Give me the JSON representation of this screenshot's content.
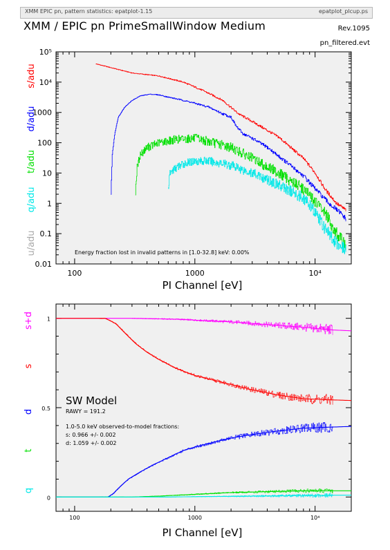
{
  "header": {
    "left_text": "XMM EPIC pn, pattern statistics: epatplot-1.15",
    "right_text": "epatplot_plcup.ps"
  },
  "title": "XMM / EPIC pn PrimeSmallWindow Medium",
  "revision": "Rev.1095",
  "filename": "pn_filtered.evt",
  "colors": {
    "s": "#ff0000",
    "d": "#0000ff",
    "t": "#00e000",
    "q": "#00e8e8",
    "u": "#a8a8a8",
    "sd": "#ff00ff",
    "model": "#000000",
    "panel_bg": "#f0f0f0"
  },
  "chart_data": [
    {
      "type": "line",
      "xscale": "log",
      "yscale": "log",
      "xlim": [
        70,
        20000
      ],
      "ylim": [
        0.01,
        100000
      ],
      "xlabel": "PI Channel [eV]",
      "x_tick_labels": [
        "100",
        "1000",
        "10⁴"
      ],
      "y_tick_labels": [
        "0.01",
        "0.1",
        "1",
        "10",
        "100",
        "1000",
        "10⁴",
        "10⁵"
      ],
      "ylabels": [
        "s/adu",
        "d/adu",
        "t/adu",
        "q/adu",
        "u/adu"
      ],
      "annotation": "Energy fraction lost in invalid patterns in [1.0-32.8] keV:  0.00%",
      "series": [
        {
          "name": "s/adu",
          "color_key": "s",
          "x": [
            150,
            200,
            300,
            500,
            800,
            1200,
            1700,
            2300,
            3000,
            5000,
            8000,
            10000,
            12000,
            15000,
            18000
          ],
          "y": [
            40000,
            30000,
            20000,
            16000,
            10000,
            5000,
            2500,
            900,
            500,
            150,
            30,
            10,
            3,
            1,
            0.6
          ]
        },
        {
          "name": "d/adu",
          "color_key": "d",
          "x": [
            200,
            205,
            215,
            230,
            260,
            300,
            350,
            420,
            500,
            600,
            800,
            1000,
            1300,
            1700,
            2000,
            2200,
            2500,
            3000,
            4000,
            6000,
            8000,
            10000,
            13000,
            16000,
            18000
          ],
          "y": [
            2,
            40,
            200,
            700,
            1500,
            2500,
            3500,
            4000,
            3800,
            3200,
            2500,
            2000,
            1500,
            900,
            700,
            350,
            200,
            140,
            70,
            20,
            8,
            3,
            1,
            0.5,
            0.3
          ]
        },
        {
          "name": "t/adu",
          "color_key": "t",
          "x": [
            320,
            330,
            350,
            400,
            500,
            700,
            1000,
            1300,
            2000,
            3000,
            5000,
            8000,
            12000,
            15000,
            18000
          ],
          "y": [
            2.5,
            15,
            40,
            70,
            100,
            130,
            140,
            110,
            70,
            30,
            10,
            3,
            0.5,
            0.1,
            0.04
          ]
        },
        {
          "name": "q/adu",
          "color_key": "q",
          "x": [
            600,
            620,
            650,
            700,
            800,
            1000,
            1300,
            2000,
            3000,
            5000,
            8000,
            10000,
            12000,
            15000,
            18000
          ],
          "y": [
            3,
            10,
            12,
            15,
            20,
            25,
            25,
            18,
            10,
            4,
            1.5,
            0.5,
            0.15,
            0.05,
            0.03
          ]
        }
      ]
    },
    {
      "type": "line",
      "xscale": "log",
      "xlim": [
        70,
        20000
      ],
      "ylim": [
        -0.08,
        1.08
      ],
      "xlabel": "PI Channel [eV]",
      "x_tick_labels": [
        "100",
        "1000",
        "10⁴"
      ],
      "y_tick_labels": [
        "0",
        "0.5",
        "1"
      ],
      "ylabels": [
        "s+d",
        "s",
        "d",
        "t",
        "q"
      ],
      "legend": {
        "title": "SW Model",
        "rawy": "RAWY = 191.2",
        "fractions_title": "1.0-5.0 keV observed-to-model fractions:",
        "s_fraction": "s: 0.966 +/- 0.002",
        "d_fraction": "d: 1.059 +/- 0.002"
      },
      "series": [
        {
          "name": "s+d",
          "color_key": "sd",
          "x": [
            70,
            300,
            700,
            1000,
            2000,
            4000,
            8000,
            14000,
            20000
          ],
          "y": [
            1.0,
            1.0,
            0.995,
            0.99,
            0.98,
            0.965,
            0.95,
            0.935,
            0.93
          ]
        },
        {
          "name": "s",
          "color_key": "s",
          "x": [
            70,
            180,
            220,
            260,
            320,
            400,
            500,
            700,
            1000,
            1500,
            2000,
            3000,
            5000,
            8000,
            12000,
            20000
          ],
          "y": [
            1.0,
            1.0,
            0.97,
            0.92,
            0.86,
            0.81,
            0.77,
            0.72,
            0.68,
            0.65,
            0.63,
            0.6,
            0.57,
            0.55,
            0.545,
            0.54
          ]
        },
        {
          "name": "d",
          "color_key": "d",
          "x": [
            70,
            190,
            210,
            240,
            280,
            350,
            450,
            600,
            800,
            1000,
            1500,
            2000,
            3000,
            5000,
            8000,
            12000,
            20000
          ],
          "y": [
            0.0,
            0.0,
            0.02,
            0.06,
            0.1,
            0.14,
            0.18,
            0.22,
            0.26,
            0.28,
            0.31,
            0.33,
            0.35,
            0.37,
            0.385,
            0.39,
            0.395
          ]
        },
        {
          "name": "t",
          "color_key": "t",
          "x": [
            70,
            300,
            500,
            1000,
            2000,
            4000,
            8000,
            14000
          ],
          "y": [
            0.0,
            0.0,
            0.005,
            0.015,
            0.025,
            0.03,
            0.035,
            0.035
          ]
        },
        {
          "name": "q",
          "color_key": "q",
          "x": [
            70,
            600,
            1000,
            3000,
            8000,
            14000
          ],
          "y": [
            0.0,
            0.0,
            0.002,
            0.005,
            0.008,
            0.01
          ]
        }
      ]
    }
  ]
}
